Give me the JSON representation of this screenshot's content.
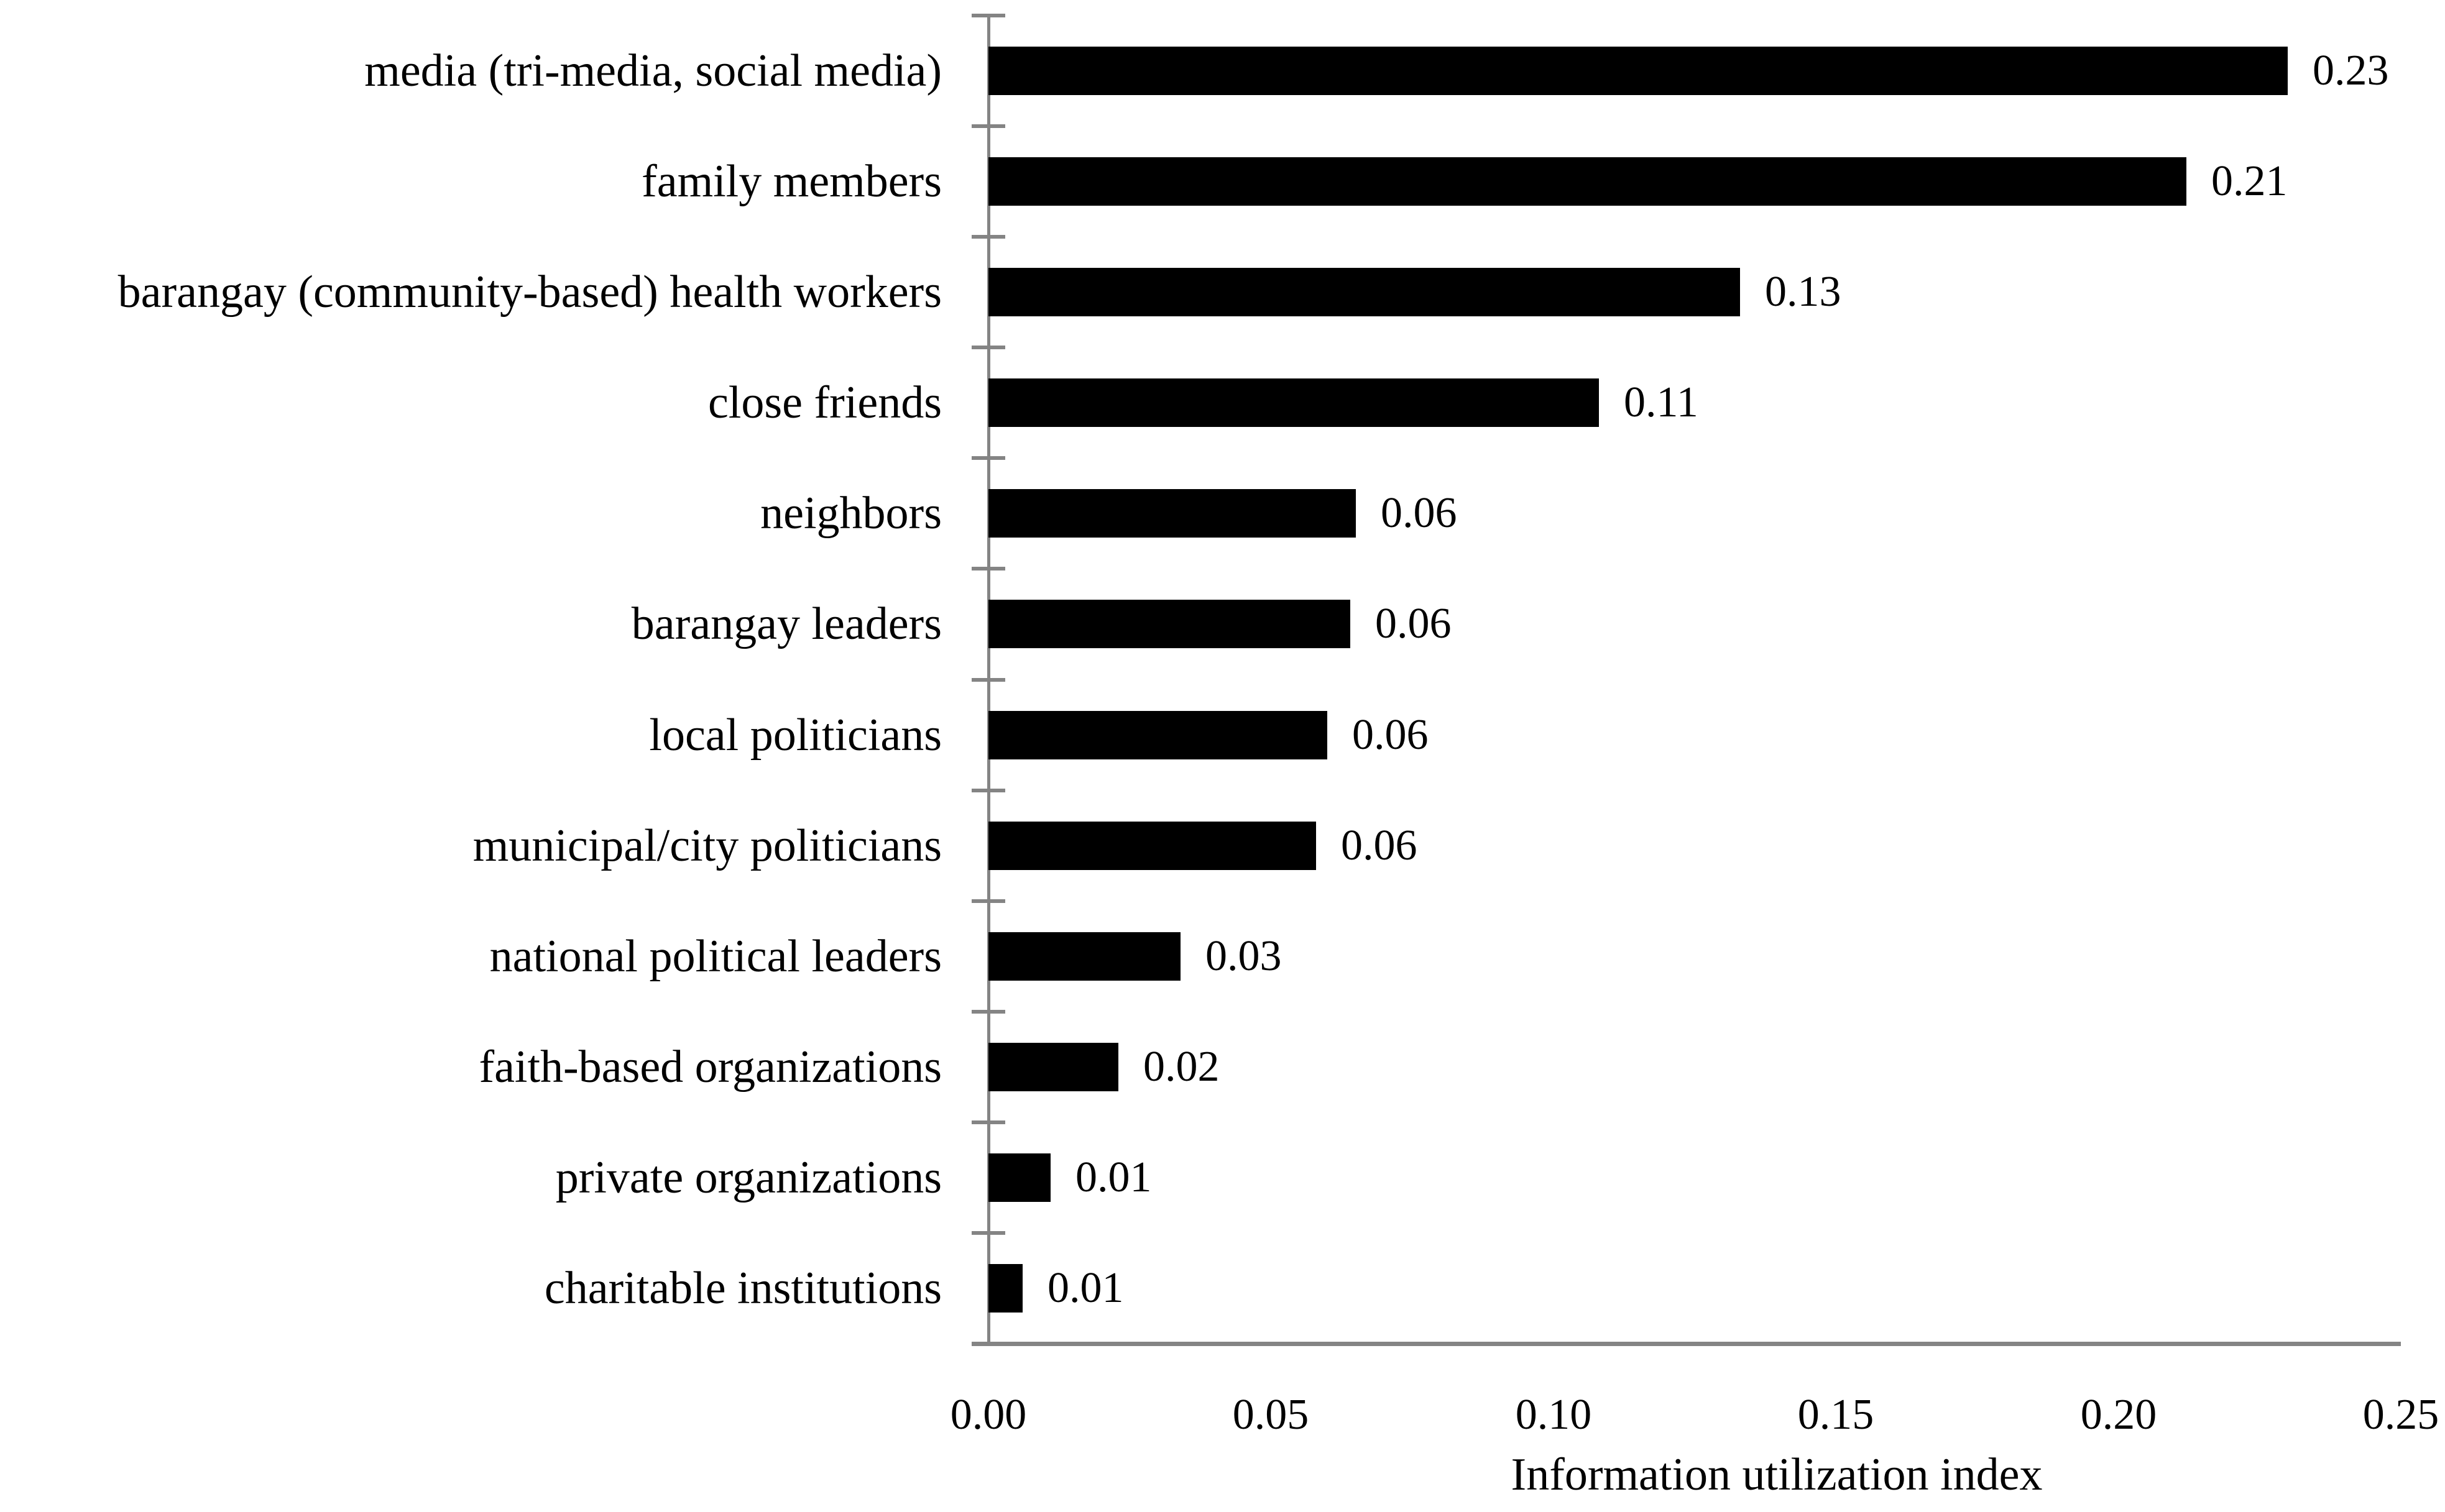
{
  "chart_data": {
    "type": "bar",
    "orientation": "horizontal",
    "title": "",
    "xlabel": "Information utilization index",
    "ylabel": "",
    "categories": [
      "media (tri-media, social media)",
      "family members",
      "barangay (community-based) health workers",
      "close friends",
      "neighbors",
      "barangay leaders",
      "local politicians",
      "municipal/city politicians",
      "national political leaders",
      "faith-based organizations",
      "private organizations",
      "charitable institutions"
    ],
    "values": [
      0.23,
      0.21,
      0.13,
      0.11,
      0.06,
      0.06,
      0.06,
      0.06,
      0.03,
      0.02,
      0.01,
      0.01
    ],
    "value_labels": [
      "0.23",
      "0.21",
      "0.13",
      "0.11",
      "0.06",
      "0.06",
      "0.06",
      "0.06",
      "0.03",
      "0.02",
      "0.01",
      "0.01"
    ],
    "values_as_drawn": [
      0.23,
      0.212,
      0.133,
      0.108,
      0.065,
      0.064,
      0.06,
      0.058,
      0.034,
      0.023,
      0.011,
      0.006
    ],
    "xlim": [
      0,
      0.25
    ],
    "x_ticks": [
      "0.00",
      "0.05",
      "0.10",
      "0.15",
      "0.20",
      "0.25"
    ],
    "grid": false,
    "legend": false,
    "bar_color": "#000000",
    "axis_color": "#848484",
    "text_color": "#000000"
  }
}
